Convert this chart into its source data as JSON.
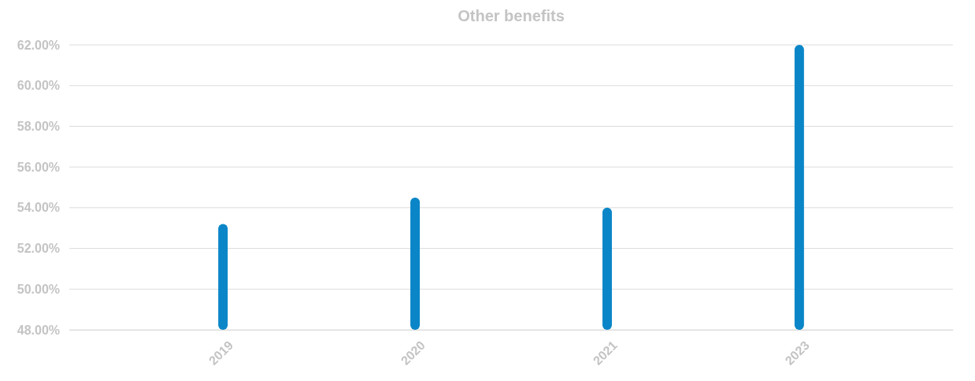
{
  "chart_data": {
    "type": "bar",
    "title": "Other benefits",
    "categories": [
      "2019",
      "2020",
      "2021",
      "2023"
    ],
    "values": [
      53.2,
      54.5,
      54.0,
      62.0
    ],
    "color": "#0a86c8",
    "ylim": [
      48,
      62
    ],
    "yticks": [
      {
        "value": 48,
        "label": "48.00%"
      },
      {
        "value": 50,
        "label": "50.00%"
      },
      {
        "value": 52,
        "label": "52.00%"
      },
      {
        "value": 54,
        "label": "54.00%"
      },
      {
        "value": 56,
        "label": "56.00%"
      },
      {
        "value": 58,
        "label": "58.00%"
      },
      {
        "value": 60,
        "label": "60.00%"
      },
      {
        "value": 62,
        "label": "62.00%"
      }
    ],
    "grid": "y"
  }
}
